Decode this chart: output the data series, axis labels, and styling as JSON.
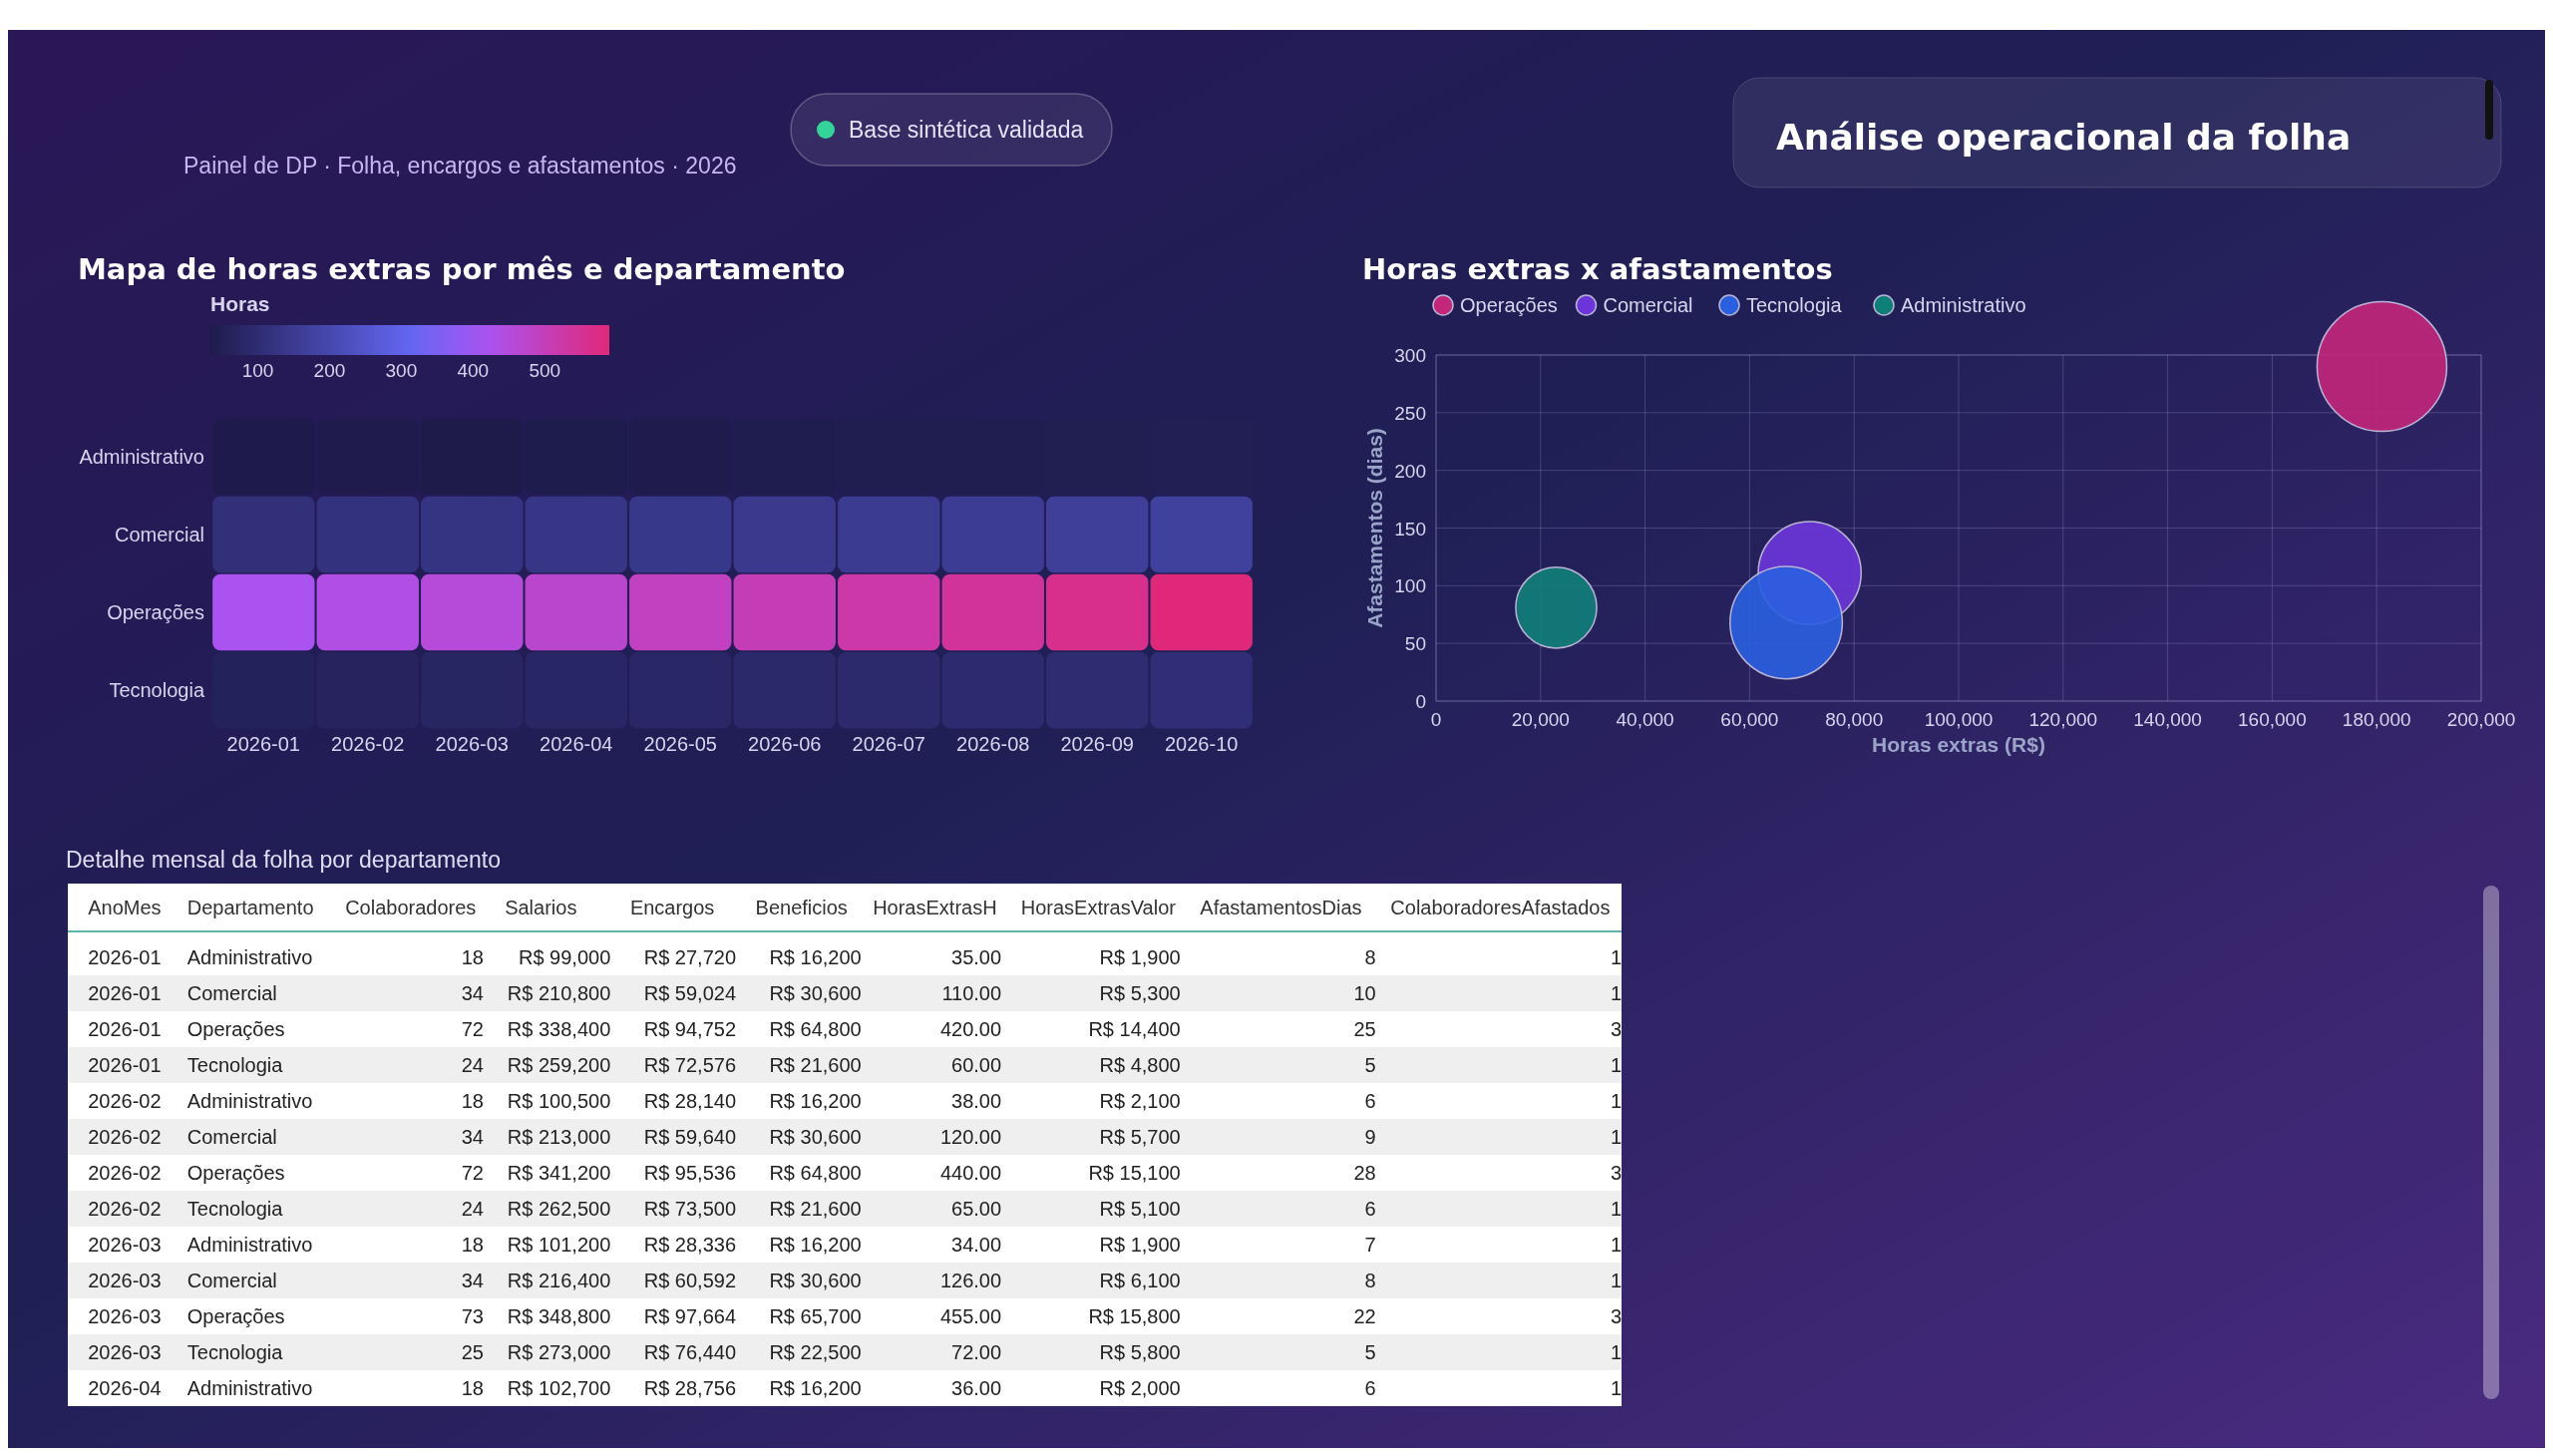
{
  "chart_data": [
    {
      "type": "other",
      "title": "Análise operacional da folha",
      "subtitle": "Painel de DP · Folha, encargos e afastamentos · 2026",
      "annotations": [
        "Base sintética validada"
      ]
    },
    {
      "type": "heatmap",
      "title": "Mapa de horas extras por mês e departamento",
      "clabel": "Horas",
      "categories": [
        "2026-01",
        "2026-02",
        "2026-03",
        "2026-04",
        "2026-05",
        "2026-06",
        "2026-07",
        "2026-08",
        "2026-09",
        "2026-10"
      ],
      "y_categories": [
        "Administrativo",
        "Comercial",
        "Operações",
        "Tecnologia"
      ],
      "cells": [
        [
          35,
          38,
          34,
          36,
          38,
          40,
          42,
          44,
          46,
          48
        ],
        [
          110,
          120,
          126,
          132,
          140,
          146,
          152,
          158,
          165,
          172
        ],
        [
          420,
          440,
          455,
          470,
          490,
          505,
          525,
          545,
          565,
          590
        ],
        [
          60,
          65,
          72,
          76,
          80,
          85,
          90,
          95,
          100,
          106
        ]
      ],
      "clim": [
        34,
        590
      ],
      "cticks": [
        100,
        200,
        300,
        400,
        500
      ]
    },
    {
      "type": "bubble",
      "title": "Horas extras x afastamentos",
      "xlabel": "Horas extras (R$)",
      "ylabel": "Afastamentos (dias)",
      "xlim": [
        0,
        200000
      ],
      "xticks": [
        0,
        {
          "value": 20000,
          "label": "20,000"
        },
        {
          "value": 40000,
          "label": "40,000"
        },
        {
          "value": 60000,
          "label": "60,000"
        },
        {
          "value": 80000,
          "label": "80,000"
        },
        {
          "value": 100000,
          "label": "100,000"
        },
        {
          "value": 120000,
          "label": "120,000"
        },
        {
          "value": 140000,
          "label": "140,000"
        },
        {
          "value": 160000,
          "label": "160,000"
        },
        {
          "value": 180000,
          "label": "180,000"
        },
        {
          "value": 200000,
          "label": "200,000"
        }
      ],
      "ylim": [
        0,
        300
      ],
      "yticks": [
        0,
        50,
        100,
        150,
        200,
        250,
        300
      ],
      "grid": true,
      "legend": "top left",
      "series": [
        {
          "name": "Operações",
          "color": "#c4267a",
          "x": [
            181000
          ],
          "values": [
            290
          ],
          "sizes": [
            1
          ]
        },
        {
          "name": "Comercial",
          "color": "#6d35d9",
          "x": [
            71500
          ],
          "values": [
            111
          ],
          "sizes": [
            0.63
          ]
        },
        {
          "name": "Tecnologia",
          "color": "#2a5fe0",
          "x": [
            67000
          ],
          "values": [
            68
          ],
          "sizes": [
            0.75
          ]
        },
        {
          "name": "Administrativo",
          "color": "#0f8078",
          "x": [
            23000
          ],
          "values": [
            81
          ],
          "sizes": [
            0.39
          ]
        }
      ]
    },
    {
      "type": "other",
      "title": "Detalhe mensal da folha por departamento",
      "categories": [
        "AnoMes",
        "Departamento",
        "Colaboradores",
        "Salarios",
        "Encargos",
        "Beneficios",
        "HorasExtrasH",
        "HorasExtrasValor",
        "AfastamentosDias",
        "ColaboradoresAfastados"
      ],
      "cell_labels": [
        [
          "2026-01",
          "Administrativo",
          "18",
          "R$ 99,000",
          "R$ 27,720",
          "R$ 16,200",
          "35.00",
          "R$ 1,900",
          "8",
          "1"
        ],
        [
          "2026-01",
          "Comercial",
          "34",
          "R$ 210,800",
          "R$ 59,024",
          "R$ 30,600",
          "110.00",
          "R$ 5,300",
          "10",
          "1"
        ],
        [
          "2026-01",
          "Operações",
          "72",
          "R$ 338,400",
          "R$ 94,752",
          "R$ 64,800",
          "420.00",
          "R$ 14,400",
          "25",
          "3"
        ],
        [
          "2026-01",
          "Tecnologia",
          "24",
          "R$ 259,200",
          "R$ 72,576",
          "R$ 21,600",
          "60.00",
          "R$ 4,800",
          "5",
          "1"
        ],
        [
          "2026-02",
          "Administrativo",
          "18",
          "R$ 100,500",
          "R$ 28,140",
          "R$ 16,200",
          "38.00",
          "R$ 2,100",
          "6",
          "1"
        ],
        [
          "2026-02",
          "Comercial",
          "34",
          "R$ 213,000",
          "R$ 59,640",
          "R$ 30,600",
          "120.00",
          "R$ 5,700",
          "9",
          "1"
        ],
        [
          "2026-02",
          "Operações",
          "72",
          "R$ 341,200",
          "R$ 95,536",
          "R$ 64,800",
          "440.00",
          "R$ 15,100",
          "28",
          "3"
        ],
        [
          "2026-02",
          "Tecnologia",
          "24",
          "R$ 262,500",
          "R$ 73,500",
          "R$ 21,600",
          "65.00",
          "R$ 5,100",
          "6",
          "1"
        ],
        [
          "2026-03",
          "Administrativo",
          "18",
          "R$ 101,200",
          "R$ 28,336",
          "R$ 16,200",
          "34.00",
          "R$ 1,900",
          "7",
          "1"
        ],
        [
          "2026-03",
          "Comercial",
          "34",
          "R$ 216,400",
          "R$ 60,592",
          "R$ 30,600",
          "126.00",
          "R$ 6,100",
          "8",
          "1"
        ],
        [
          "2026-03",
          "Operações",
          "73",
          "R$ 348,800",
          "R$ 97,664",
          "R$ 65,700",
          "455.00",
          "R$ 15,800",
          "22",
          "3"
        ],
        [
          "2026-03",
          "Tecnologia",
          "25",
          "R$ 273,000",
          "R$ 76,440",
          "R$ 22,500",
          "72.00",
          "R$ 5,800",
          "5",
          "1"
        ],
        [
          "2026-04",
          "Administrativo",
          "18",
          "R$ 102,700",
          "R$ 28,756",
          "R$ 16,200",
          "36.00",
          "R$ 2,000",
          "6",
          "1"
        ]
      ]
    }
  ]
}
